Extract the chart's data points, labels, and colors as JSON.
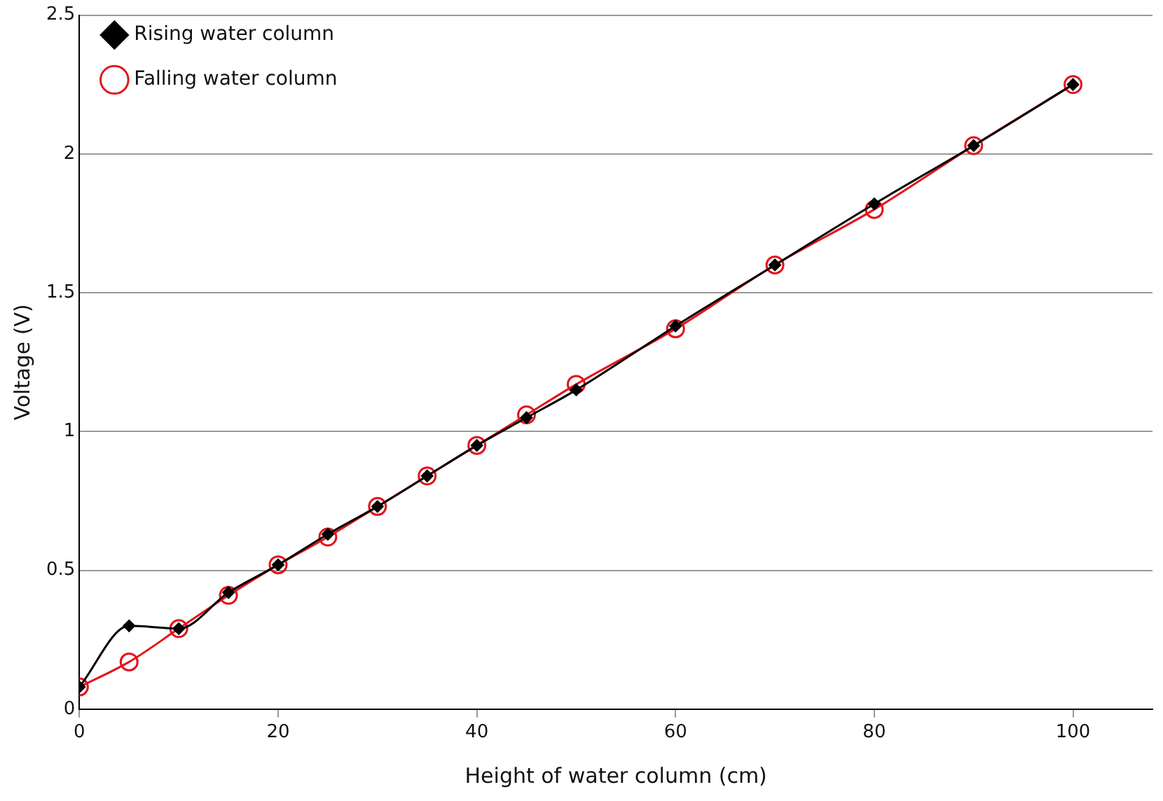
{
  "chart_data": {
    "type": "line",
    "xlabel": "Height of water column (cm)",
    "ylabel": "Voltage (V)",
    "xlim": [
      0,
      108
    ],
    "xticks": [
      0,
      20,
      40,
      60,
      80,
      100
    ],
    "ylim": [
      0,
      2.5
    ],
    "yticks": [
      0,
      0.5,
      1,
      1.5,
      2,
      2.5
    ],
    "grid": "y",
    "legend": "top left",
    "series": [
      {
        "name": "Rising water column",
        "color": "#000000",
        "marker": "diamond",
        "x": [
          0,
          5,
          10,
          15,
          20,
          25,
          30,
          35,
          40,
          45,
          50,
          60,
          70,
          80,
          90,
          100
        ],
        "values": [
          0.08,
          0.3,
          0.29,
          0.42,
          0.52,
          0.63,
          0.73,
          0.84,
          0.95,
          1.05,
          1.15,
          1.38,
          1.6,
          1.82,
          2.03,
          2.25
        ]
      },
      {
        "name": "Falling water column",
        "color": "#e3141b",
        "marker": "circle",
        "x": [
          0,
          5,
          10,
          15,
          20,
          25,
          30,
          35,
          40,
          45,
          50,
          60,
          70,
          80,
          90,
          100
        ],
        "values": [
          0.08,
          0.17,
          0.29,
          0.41,
          0.52,
          0.62,
          0.73,
          0.84,
          0.95,
          1.06,
          1.17,
          1.37,
          1.6,
          1.8,
          2.03,
          2.25
        ]
      }
    ]
  }
}
